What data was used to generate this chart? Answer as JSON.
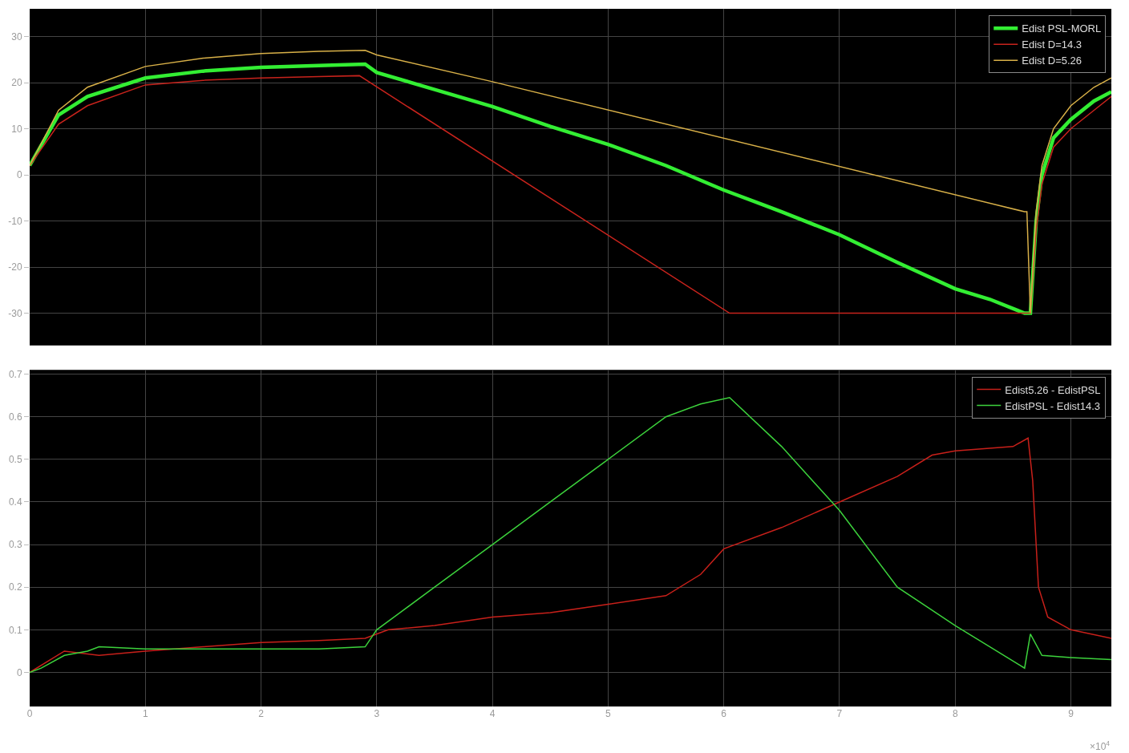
{
  "chart_data": [
    {
      "type": "line",
      "tick_labels": "y",
      "grid": true,
      "legend": "top right",
      "xlim": [
        0,
        9.35
      ],
      "xticks": [
        0,
        1,
        2,
        3,
        4,
        5,
        6,
        7,
        8,
        9
      ],
      "ylim": [
        -37,
        36
      ],
      "yticks": [
        -30,
        -20,
        -10,
        0,
        10,
        20,
        30
      ],
      "series": [
        {
          "name": "Edist PSL-MORL",
          "color": "#33ee33",
          "x": [
            0,
            0.25,
            0.5,
            1,
            1.5,
            2,
            2.5,
            2.9,
            3,
            3.5,
            4,
            4.5,
            5,
            5.5,
            6,
            6.5,
            7,
            7.5,
            8,
            8.3,
            8.6,
            8.65,
            8.7,
            8.75,
            8.85,
            9,
            9.2,
            9.35
          ],
          "values": [
            2,
            13,
            17,
            21,
            22.5,
            23.3,
            23.7,
            24,
            22.2,
            18.5,
            14.8,
            10.5,
            6.6,
            2,
            -3.3,
            -8,
            -13,
            -19,
            -24.7,
            -27,
            -30,
            -30,
            -10,
            0,
            8,
            12,
            16,
            18
          ]
        },
        {
          "name": "Edist D=14.3",
          "color": "#c8231c",
          "x": [
            0,
            0.25,
            0.5,
            1,
            1.5,
            2,
            2.5,
            2.85,
            6.05,
            8.6,
            8.65,
            8.7,
            8.75,
            8.85,
            9,
            9.2,
            9.35
          ],
          "values": [
            2,
            11,
            15,
            19.5,
            20.5,
            21,
            21.3,
            21.5,
            -30,
            -30,
            -30,
            -12,
            -2,
            6,
            10,
            14,
            17
          ]
        },
        {
          "name": "Edist D=5.26",
          "color": "#d8b048",
          "x": [
            0,
            0.25,
            0.5,
            1,
            1.5,
            2,
            2.5,
            2.9,
            3,
            4,
            8.6,
            8.62,
            8.65,
            8.7,
            8.75,
            8.85,
            9,
            9.2,
            9.35
          ],
          "values": [
            2,
            14,
            19,
            23.5,
            25.3,
            26.3,
            26.8,
            27,
            26,
            20.2,
            -8,
            -8,
            -30,
            -8,
            2,
            10,
            15,
            19,
            21
          ]
        }
      ]
    },
    {
      "type": "line",
      "grid": true,
      "legend": "top right",
      "xlim": [
        0,
        9.35
      ],
      "ylim": [
        -0.08,
        0.71
      ],
      "yticks": [
        0,
        0.1,
        0.2,
        0.3,
        0.4,
        0.5,
        0.6,
        0.7
      ],
      "xticks": [
        0,
        1,
        2,
        3,
        4,
        5,
        6,
        7,
        8,
        9
      ],
      "annotations": [
        "×10$^{4}$"
      ],
      "series": [
        {
          "name": "Edist5.26 - EdistPSL",
          "color": "#c8201a",
          "x": [
            0,
            0.3,
            0.6,
            1,
            1.5,
            2,
            2.5,
            2.9,
            3.1,
            3.5,
            4,
            4.5,
            5,
            5.5,
            5.8,
            6,
            6.5,
            7,
            7.5,
            7.8,
            8,
            8.5,
            8.63,
            8.67,
            8.72,
            8.8,
            9,
            9.35
          ],
          "values": [
            0,
            0.05,
            0.04,
            0.05,
            0.06,
            0.07,
            0.075,
            0.08,
            0.1,
            0.11,
            0.13,
            0.14,
            0.16,
            0.18,
            0.23,
            0.29,
            0.34,
            0.4,
            0.46,
            0.51,
            0.52,
            0.53,
            0.55,
            0.45,
            0.2,
            0.13,
            0.1,
            0.08
          ]
        },
        {
          "name": "EdistPSL - Edist14.3",
          "color": "#3cd23c",
          "x": [
            0,
            0.1,
            0.3,
            0.5,
            0.6,
            1,
            1.5,
            2,
            2.5,
            2.9,
            3,
            3.5,
            4,
            4.5,
            5,
            5.5,
            5.8,
            6.05,
            6.5,
            7,
            7.5,
            8,
            8.3,
            8.6,
            8.65,
            8.75,
            9,
            9.35
          ],
          "values": [
            0,
            0.01,
            0.04,
            0.05,
            0.06,
            0.055,
            0.055,
            0.055,
            0.055,
            0.06,
            0.1,
            0.2,
            0.3,
            0.4,
            0.5,
            0.6,
            0.63,
            0.645,
            0.53,
            0.38,
            0.2,
            0.11,
            0.06,
            0.01,
            0.09,
            0.04,
            0.035,
            0.03
          ]
        }
      ]
    }
  ]
}
